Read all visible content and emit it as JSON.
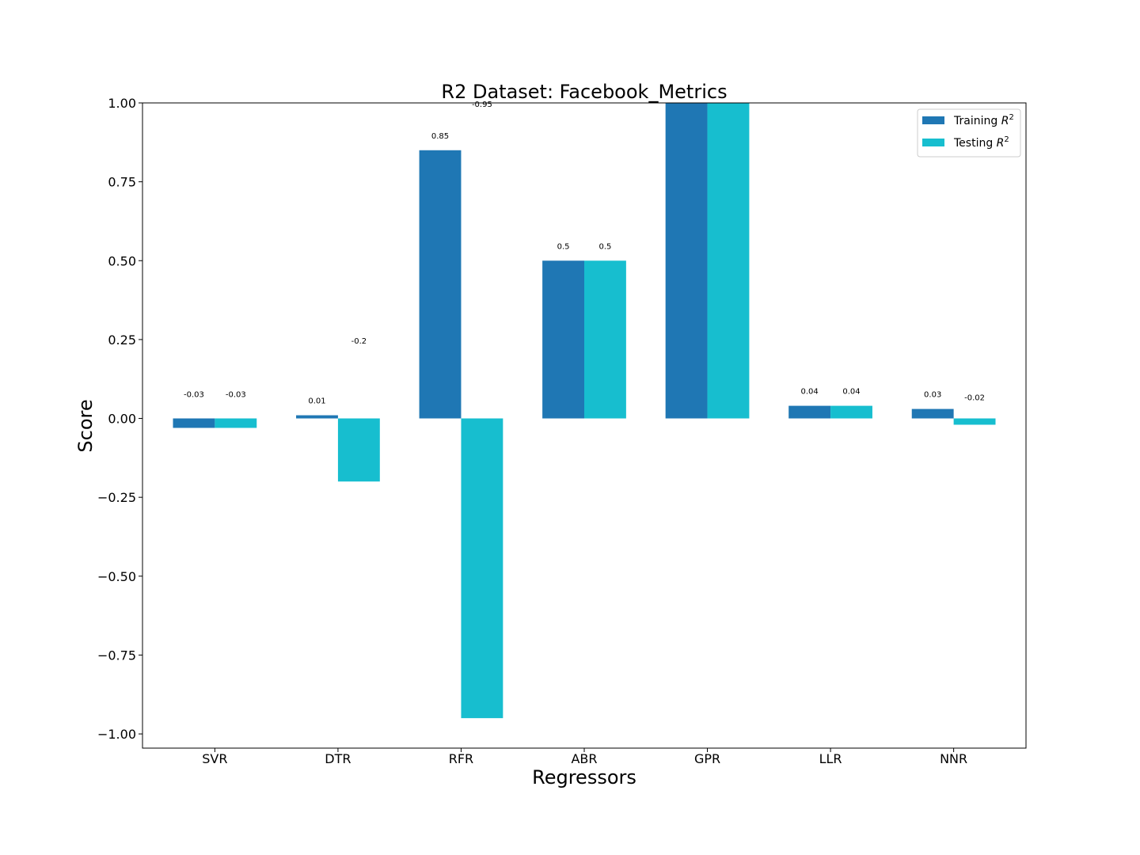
{
  "chart_data": {
    "type": "bar",
    "title": "R2 Dataset: Facebook_Metrics",
    "xlabel": "Regressors",
    "ylabel": "Score",
    "categories": [
      "SVR",
      "DTR",
      "RFR",
      "ABR",
      "GPR",
      "LLR",
      "NNR"
    ],
    "series": [
      {
        "name": "Training R²",
        "legend_base": "Training",
        "color": "#1f77b4",
        "values": [
          -0.03,
          0.01,
          0.85,
          0.5,
          1.0,
          0.04,
          0.03
        ],
        "labels": [
          "-0.03",
          "0.01",
          "0.85",
          "0.5",
          "",
          "0.04",
          "0.03"
        ]
      },
      {
        "name": "Testing R²",
        "legend_base": "Testing",
        "color": "#17becf",
        "values": [
          -0.03,
          -0.2,
          -0.95,
          0.5,
          1.0,
          0.04,
          -0.02
        ],
        "labels": [
          "-0.03",
          "-0.2",
          "-0.95",
          "0.5",
          "",
          "0.04",
          "-0.02"
        ]
      }
    ],
    "ylim": [
      -1.045,
      1.0
    ],
    "yticks": [
      1.0,
      0.75,
      0.5,
      0.25,
      0.0,
      -0.25,
      -0.5,
      -0.75,
      -1.0
    ],
    "ytick_labels": [
      "1.00",
      "0.75",
      "0.50",
      "0.25",
      "0.00",
      "−0.25",
      "−0.50",
      "−0.75",
      "−1.00"
    ],
    "legend": "top-right",
    "grid": false
  }
}
